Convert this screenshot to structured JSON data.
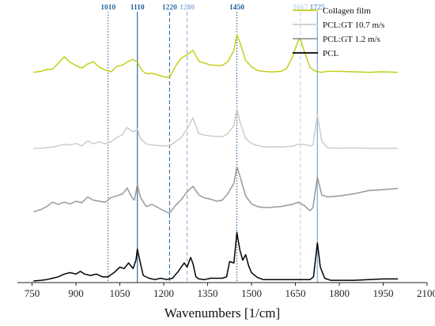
{
  "chart_data": {
    "type": "line",
    "xlabel": "Wavenumbers [1/cm]",
    "ylabel": "",
    "xlim": [
      700,
      2100
    ],
    "x_ticks": [
      750,
      900,
      1050,
      1200,
      1350,
      1500,
      1650,
      1800,
      1950,
      2100
    ],
    "grid": false,
    "legend_position": "top-right",
    "reference_lines": [
      {
        "label": "1010",
        "x": 1010,
        "style": "dotted",
        "color": "#2e6da4"
      },
      {
        "label": "1110",
        "x": 1110,
        "style": "solid",
        "color": "#1f5f99"
      },
      {
        "label": "1220",
        "x": 1220,
        "style": "dashed",
        "color": "#2e6da4"
      },
      {
        "label": "1280",
        "x": 1280,
        "style": "dashed",
        "color": "#8fb3dd"
      },
      {
        "label": "1450",
        "x": 1450,
        "style": "dotted",
        "color": "#1f5f99"
      },
      {
        "label": "1667",
        "x": 1667,
        "style": "dashed",
        "color": "#c5d6ea"
      },
      {
        "label": "1725",
        "x": 1725,
        "style": "solid",
        "color": "#6f9cd0"
      }
    ],
    "series": [
      {
        "name": "Collagen film",
        "color": "#c3cf1a",
        "x": [
          755,
          780,
          800,
          820,
          840,
          860,
          880,
          900,
          920,
          940,
          960,
          980,
          1000,
          1020,
          1040,
          1060,
          1080,
          1095,
          1110,
          1125,
          1140,
          1160,
          1180,
          1200,
          1220,
          1240,
          1260,
          1280,
          1300,
          1320,
          1340,
          1360,
          1380,
          1400,
          1420,
          1440,
          1450,
          1460,
          1480,
          1500,
          1520,
          1540,
          1560,
          1580,
          1600,
          1620,
          1640,
          1660,
          1667,
          1680,
          1700,
          1720,
          1740,
          1760,
          1800,
          1850,
          1900,
          1950,
          2000
        ],
        "y": [
          0.18,
          0.2,
          0.24,
          0.25,
          0.38,
          0.52,
          0.4,
          0.33,
          0.27,
          0.36,
          0.41,
          0.29,
          0.23,
          0.19,
          0.31,
          0.34,
          0.42,
          0.46,
          0.4,
          0.22,
          0.15,
          0.16,
          0.12,
          0.08,
          0.07,
          0.31,
          0.49,
          0.56,
          0.66,
          0.42,
          0.38,
          0.34,
          0.33,
          0.33,
          0.42,
          0.66,
          1.0,
          0.84,
          0.44,
          0.3,
          0.22,
          0.2,
          0.19,
          0.19,
          0.2,
          0.26,
          0.52,
          0.88,
          0.91,
          0.64,
          0.28,
          0.2,
          0.18,
          0.2,
          0.2,
          0.19,
          0.18,
          0.19,
          0.18
        ]
      },
      {
        "name": "PCL:GT 10.7 m/s",
        "color": "#cccccc",
        "x": [
          755,
          780,
          800,
          820,
          840,
          860,
          880,
          900,
          920,
          940,
          960,
          980,
          1000,
          1020,
          1040,
          1060,
          1075,
          1090,
          1100,
          1110,
          1120,
          1140,
          1160,
          1180,
          1200,
          1220,
          1240,
          1260,
          1280,
          1300,
          1320,
          1340,
          1360,
          1380,
          1400,
          1420,
          1440,
          1450,
          1460,
          1480,
          1500,
          1520,
          1540,
          1560,
          1580,
          1600,
          1620,
          1640,
          1660,
          1680,
          1700,
          1710,
          1725,
          1740,
          1760,
          1800,
          1850,
          1900,
          1950,
          2000
        ],
        "y": [
          0.04,
          0.04,
          0.06,
          0.07,
          0.1,
          0.14,
          0.12,
          0.16,
          0.1,
          0.22,
          0.15,
          0.2,
          0.15,
          0.2,
          0.3,
          0.38,
          0.55,
          0.46,
          0.45,
          0.52,
          0.28,
          0.15,
          0.12,
          0.11,
          0.1,
          0.1,
          0.2,
          0.3,
          0.52,
          0.78,
          0.4,
          0.36,
          0.34,
          0.33,
          0.32,
          0.4,
          0.6,
          1.0,
          0.7,
          0.28,
          0.16,
          0.11,
          0.08,
          0.07,
          0.08,
          0.07,
          0.08,
          0.09,
          0.14,
          0.14,
          0.1,
          0.12,
          0.86,
          0.22,
          0.05,
          0.04,
          0.05,
          0.04,
          0.04,
          0.04
        ]
      },
      {
        "name": "PCL:GT 1.2 m/s",
        "color": "#999999",
        "x": [
          755,
          780,
          800,
          820,
          840,
          860,
          880,
          900,
          920,
          940,
          960,
          980,
          1000,
          1020,
          1040,
          1060,
          1075,
          1090,
          1100,
          1110,
          1120,
          1140,
          1160,
          1180,
          1200,
          1220,
          1240,
          1260,
          1280,
          1300,
          1320,
          1340,
          1360,
          1380,
          1400,
          1420,
          1440,
          1450,
          1460,
          1480,
          1500,
          1520,
          1540,
          1560,
          1580,
          1600,
          1620,
          1640,
          1660,
          1680,
          1700,
          1710,
          1725,
          1740,
          1760,
          1800,
          1850,
          1900,
          1950,
          2000
        ],
        "y": [
          0.1,
          0.14,
          0.2,
          0.28,
          0.24,
          0.28,
          0.25,
          0.3,
          0.27,
          0.38,
          0.32,
          0.3,
          0.28,
          0.37,
          0.4,
          0.44,
          0.55,
          0.38,
          0.32,
          0.62,
          0.38,
          0.2,
          0.24,
          0.18,
          0.12,
          0.07,
          0.22,
          0.33,
          0.48,
          0.58,
          0.42,
          0.36,
          0.34,
          0.3,
          0.32,
          0.45,
          0.64,
          0.95,
          0.78,
          0.4,
          0.25,
          0.2,
          0.18,
          0.18,
          0.19,
          0.2,
          0.22,
          0.24,
          0.28,
          0.22,
          0.12,
          0.18,
          0.76,
          0.42,
          0.38,
          0.4,
          0.44,
          0.5,
          0.52,
          0.54
        ]
      },
      {
        "name": "PCL",
        "color": "#000000",
        "x": [
          755,
          780,
          800,
          820,
          840,
          860,
          880,
          900,
          915,
          930,
          950,
          970,
          990,
          1010,
          1030,
          1050,
          1065,
          1080,
          1095,
          1105,
          1110,
          1118,
          1130,
          1150,
          1170,
          1190,
          1210,
          1230,
          1250,
          1270,
          1280,
          1292,
          1300,
          1310,
          1320,
          1340,
          1360,
          1380,
          1400,
          1415,
          1425,
          1440,
          1450,
          1460,
          1470,
          1480,
          1490,
          1500,
          1520,
          1540,
          1560,
          1580,
          1600,
          1620,
          1640,
          1660,
          1680,
          1700,
          1712,
          1725,
          1735,
          1750,
          1770,
          1800,
          1850,
          1900,
          1950,
          2000
        ],
        "y": [
          0.0,
          0.01,
          0.02,
          0.04,
          0.06,
          0.1,
          0.12,
          0.1,
          0.14,
          0.1,
          0.08,
          0.1,
          0.06,
          0.06,
          0.12,
          0.2,
          0.18,
          0.26,
          0.18,
          0.3,
          0.46,
          0.3,
          0.08,
          0.04,
          0.02,
          0.04,
          0.02,
          0.04,
          0.14,
          0.26,
          0.2,
          0.34,
          0.25,
          0.06,
          0.03,
          0.02,
          0.04,
          0.04,
          0.04,
          0.06,
          0.28,
          0.26,
          0.7,
          0.45,
          0.3,
          0.38,
          0.22,
          0.12,
          0.05,
          0.02,
          0.02,
          0.02,
          0.02,
          0.02,
          0.02,
          0.02,
          0.02,
          0.02,
          0.06,
          0.55,
          0.2,
          0.04,
          0.01,
          0.01,
          0.01,
          0.02,
          0.03,
          0.03
        ]
      }
    ]
  }
}
